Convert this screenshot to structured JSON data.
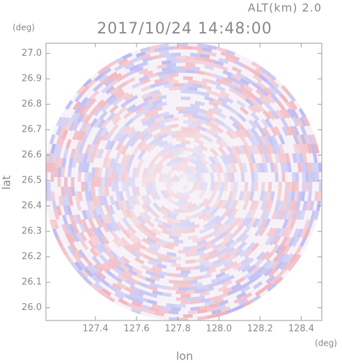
{
  "chart_data": {
    "type": "radar-image",
    "title": "2017/10/24 14:48:00",
    "subtitle": "ALT(km) 2.0",
    "x_label": "lon",
    "y_label": "lat",
    "x_unit": "(deg)",
    "y_unit": "(deg)",
    "xlim": [
      127.16,
      128.5
    ],
    "ylim": [
      25.95,
      27.04
    ],
    "xticks": [
      127.4,
      127.6,
      127.8,
      {
        "value": 128,
        "label": "128.0"
      },
      128.2,
      128.4
    ],
    "yticks": [
      {
        "value": 26,
        "label": "26.0"
      },
      26.1,
      26.2,
      26.3,
      26.4,
      26.5,
      26.6,
      26.7,
      26.8,
      26.9,
      {
        "value": 27,
        "label": "27.0"
      }
    ]
  }
}
